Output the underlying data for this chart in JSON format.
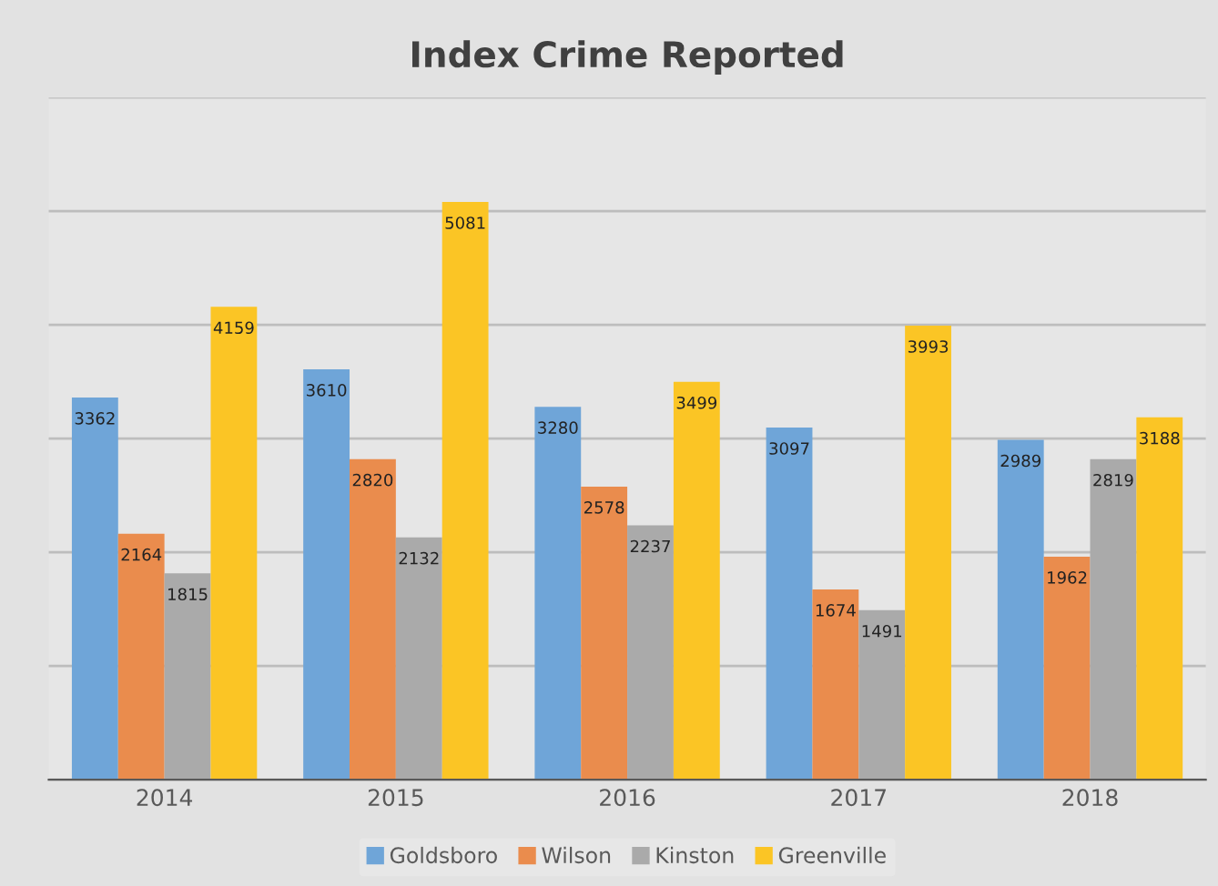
{
  "chart_data": {
    "type": "bar",
    "title": "Index Crime Reported",
    "categories": [
      "2014",
      "2015",
      "2016",
      "2017",
      "2018"
    ],
    "series": [
      {
        "name": "Goldsboro",
        "color": "#6fa5d8",
        "values": [
          3362,
          3610,
          3280,
          3097,
          2989
        ]
      },
      {
        "name": "Wilson",
        "color": "#ea8c4d",
        "values": [
          2164,
          2820,
          2578,
          1674,
          1962
        ]
      },
      {
        "name": "Kinston",
        "color": "#aaaaaa",
        "values": [
          1815,
          2132,
          2237,
          1491,
          2819
        ]
      },
      {
        "name": "Greenville",
        "color": "#fbc525",
        "values": [
          4159,
          5081,
          3499,
          3993,
          3188
        ]
      }
    ],
    "ylim": [
      0,
      6000
    ],
    "yticks": [
      {
        "value": 0,
        "label": null
      },
      {
        "value": 1000,
        "label": null
      },
      {
        "value": 2000,
        "label": null
      },
      {
        "value": 3000,
        "label": null
      },
      {
        "value": 4000,
        "label": null
      },
      {
        "value": 5000,
        "label": null
      },
      {
        "value": 6000,
        "label": null
      }
    ],
    "tick_labels": "x",
    "grid": "y",
    "legend": "bottom",
    "data_labels": true
  }
}
